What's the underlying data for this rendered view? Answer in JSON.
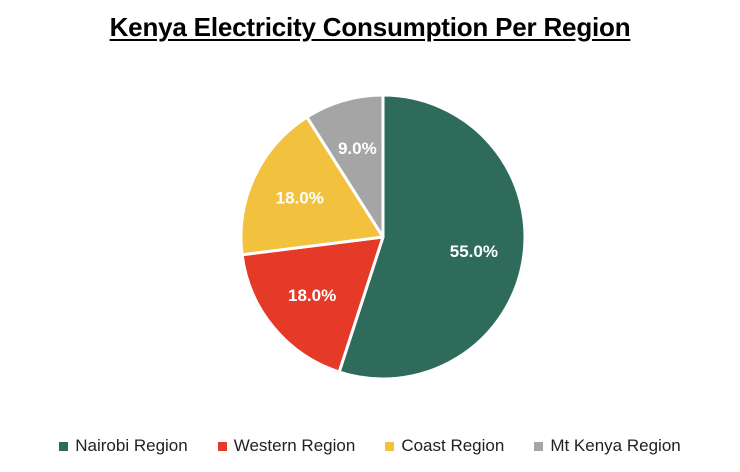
{
  "chart_data": {
    "type": "pie",
    "title": "Kenya Electricity Consumption Per Region",
    "categories": [
      "Nairobi Region",
      "Western Region",
      "Coast Region",
      "Mt Kenya Region"
    ],
    "values": [
      55.0,
      18.0,
      18.0,
      9.0
    ],
    "labels": [
      "55.0%",
      "18.0%",
      "18.0%",
      "9.0%"
    ],
    "colors": [
      "#2e6b5a",
      "#e53a27",
      "#f2c23e",
      "#a5a5a5"
    ],
    "start": "12 o'clock",
    "direction": "clockwise",
    "legend_position": "bottom"
  }
}
